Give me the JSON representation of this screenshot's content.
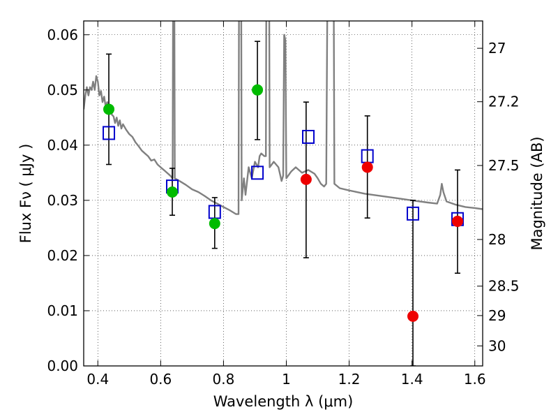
{
  "chart_data": {
    "type": "scatter",
    "title": "",
    "xlabel": "Wavelength  λ (μm)",
    "ylabel": "Flux  Fν  ( μJy )",
    "y2label": "Magnitude (AB)",
    "xlim": [
      0.355,
      1.625
    ],
    "ylim": [
      0.0,
      0.0625
    ],
    "grid": true,
    "x_ticks": [
      {
        "value": 0.4,
        "label": "0.4"
      },
      {
        "value": 0.6,
        "label": "0.6"
      },
      {
        "value": 0.8,
        "label": "0.8"
      },
      {
        "value": 1.0,
        "label": "1"
      },
      {
        "value": 1.2,
        "label": "1.2"
      },
      {
        "value": 1.4,
        "label": "1.4"
      },
      {
        "value": 1.6,
        "label": "1.6"
      }
    ],
    "y_ticks": [
      {
        "value": 0.0,
        "label": "0.00"
      },
      {
        "value": 0.01,
        "label": "0.01"
      },
      {
        "value": 0.02,
        "label": "0.02"
      },
      {
        "value": 0.03,
        "label": "0.03"
      },
      {
        "value": 0.04,
        "label": "0.04"
      },
      {
        "value": 0.05,
        "label": "0.05"
      },
      {
        "value": 0.06,
        "label": "0.06"
      }
    ],
    "y2_ticks": [
      {
        "value": 27.0,
        "label": "27"
      },
      {
        "value": 27.2,
        "label": "27.2"
      },
      {
        "value": 27.5,
        "label": "27.5"
      },
      {
        "value": 28.0,
        "label": "28"
      },
      {
        "value": 28.5,
        "label": "28.5"
      },
      {
        "value": 29.0,
        "label": "29"
      },
      {
        "value": 30.0,
        "label": "30"
      }
    ],
    "model_sed": {
      "color": "#808080",
      "points": [
        [
          0.355,
          0.0465
        ],
        [
          0.36,
          0.049
        ],
        [
          0.365,
          0.0505
        ],
        [
          0.37,
          0.049
        ],
        [
          0.375,
          0.0505
        ],
        [
          0.38,
          0.05
        ],
        [
          0.385,
          0.0515
        ],
        [
          0.39,
          0.05
        ],
        [
          0.395,
          0.0525
        ],
        [
          0.4,
          0.0515
        ],
        [
          0.405,
          0.049
        ],
        [
          0.41,
          0.0498
        ],
        [
          0.415,
          0.0478
        ],
        [
          0.42,
          0.0488
        ],
        [
          0.425,
          0.047
        ],
        [
          0.43,
          0.0478
        ],
        [
          0.435,
          0.046
        ],
        [
          0.44,
          0.047
        ],
        [
          0.445,
          0.0455
        ],
        [
          0.45,
          0.0452
        ],
        [
          0.455,
          0.044
        ],
        [
          0.46,
          0.045
        ],
        [
          0.465,
          0.0435
        ],
        [
          0.47,
          0.0445
        ],
        [
          0.475,
          0.043
        ],
        [
          0.48,
          0.0438
        ],
        [
          0.49,
          0.0428
        ],
        [
          0.5,
          0.042
        ],
        [
          0.51,
          0.0415
        ],
        [
          0.52,
          0.0405
        ],
        [
          0.53,
          0.0398
        ],
        [
          0.54,
          0.039
        ],
        [
          0.55,
          0.0385
        ],
        [
          0.56,
          0.038
        ],
        [
          0.57,
          0.0372
        ],
        [
          0.58,
          0.0374
        ],
        [
          0.59,
          0.0365
        ],
        [
          0.6,
          0.036
        ],
        [
          0.61,
          0.0355
        ],
        [
          0.62,
          0.035
        ],
        [
          0.63,
          0.0345
        ],
        [
          0.638,
          0.034
        ],
        [
          0.64,
          0.08
        ],
        [
          0.643,
          0.08
        ],
        [
          0.645,
          0.034
        ],
        [
          0.66,
          0.0335
        ],
        [
          0.68,
          0.0328
        ],
        [
          0.7,
          0.032
        ],
        [
          0.72,
          0.0315
        ],
        [
          0.74,
          0.0308
        ],
        [
          0.76,
          0.03
        ],
        [
          0.78,
          0.0294
        ],
        [
          0.8,
          0.0288
        ],
        [
          0.82,
          0.0282
        ],
        [
          0.84,
          0.0275
        ],
        [
          0.848,
          0.0275
        ],
        [
          0.85,
          0.08
        ],
        [
          0.856,
          0.08
        ],
        [
          0.858,
          0.03
        ],
        [
          0.865,
          0.034
        ],
        [
          0.87,
          0.031
        ],
        [
          0.88,
          0.036
        ],
        [
          0.89,
          0.034
        ],
        [
          0.9,
          0.037
        ],
        [
          0.91,
          0.036
        ],
        [
          0.915,
          0.038
        ],
        [
          0.92,
          0.0385
        ],
        [
          0.93,
          0.038
        ],
        [
          0.935,
          0.038
        ],
        [
          0.937,
          0.08
        ],
        [
          0.945,
          0.08
        ],
        [
          0.947,
          0.036
        ],
        [
          0.96,
          0.037
        ],
        [
          0.975,
          0.036
        ],
        [
          0.985,
          0.0335
        ],
        [
          0.99,
          0.0345
        ],
        [
          0.993,
          0.06
        ],
        [
          0.997,
          0.059
        ],
        [
          1.0,
          0.034
        ],
        [
          1.015,
          0.0352
        ],
        [
          1.03,
          0.036
        ],
        [
          1.05,
          0.035
        ],
        [
          1.07,
          0.0355
        ],
        [
          1.09,
          0.0348
        ],
        [
          1.1,
          0.034
        ],
        [
          1.11,
          0.033
        ],
        [
          1.12,
          0.0325
        ],
        [
          1.127,
          0.033
        ],
        [
          1.132,
          0.08
        ],
        [
          1.15,
          0.08
        ],
        [
          1.153,
          0.033
        ],
        [
          1.17,
          0.0322
        ],
        [
          1.2,
          0.0318
        ],
        [
          1.25,
          0.0312
        ],
        [
          1.3,
          0.0308
        ],
        [
          1.35,
          0.0304
        ],
        [
          1.4,
          0.03
        ],
        [
          1.45,
          0.0296
        ],
        [
          1.48,
          0.0294
        ],
        [
          1.49,
          0.031
        ],
        [
          1.495,
          0.033
        ],
        [
          1.5,
          0.0315
        ],
        [
          1.51,
          0.0298
        ],
        [
          1.54,
          0.0292
        ],
        [
          1.57,
          0.0288
        ],
        [
          1.6,
          0.0286
        ],
        [
          1.625,
          0.0284
        ]
      ]
    },
    "model_photometry": {
      "marker": "open-square",
      "color": "#0000cc",
      "points": [
        {
          "x": 0.435,
          "y": 0.0422
        },
        {
          "x": 0.637,
          "y": 0.0325
        },
        {
          "x": 0.772,
          "y": 0.0279
        },
        {
          "x": 0.908,
          "y": 0.035
        },
        {
          "x": 1.07,
          "y": 0.0415
        },
        {
          "x": 1.258,
          "y": 0.038
        },
        {
          "x": 1.403,
          "y": 0.0276
        },
        {
          "x": 1.545,
          "y": 0.0266
        }
      ]
    },
    "observed": [
      {
        "name": "",
        "color": "#00bb00",
        "marker": "filled-circle",
        "points": [
          {
            "x": 0.435,
            "y": 0.0465,
            "err_lo": 0.0365,
            "err_hi": 0.0565
          },
          {
            "x": 0.637,
            "y": 0.0315,
            "err_lo": 0.0273,
            "err_hi": 0.0358
          },
          {
            "x": 0.772,
            "y": 0.0258,
            "err_lo": 0.0213,
            "err_hi": 0.0305
          },
          {
            "x": 0.908,
            "y": 0.05,
            "err_lo": 0.041,
            "err_hi": 0.0588
          }
        ]
      },
      {
        "name": "",
        "color": "#ee0000",
        "marker": "filled-circle",
        "points": [
          {
            "x": 1.063,
            "y": 0.0338,
            "err_lo": 0.0196,
            "err_hi": 0.0478
          },
          {
            "x": 1.258,
            "y": 0.036,
            "err_lo": 0.0268,
            "err_hi": 0.0453
          },
          {
            "x": 1.403,
            "y": 0.009,
            "err_lo": 0.0,
            "err_hi": 0.03
          },
          {
            "x": 1.545,
            "y": 0.0262,
            "err_lo": 0.0168,
            "err_hi": 0.0355
          }
        ]
      }
    ]
  }
}
